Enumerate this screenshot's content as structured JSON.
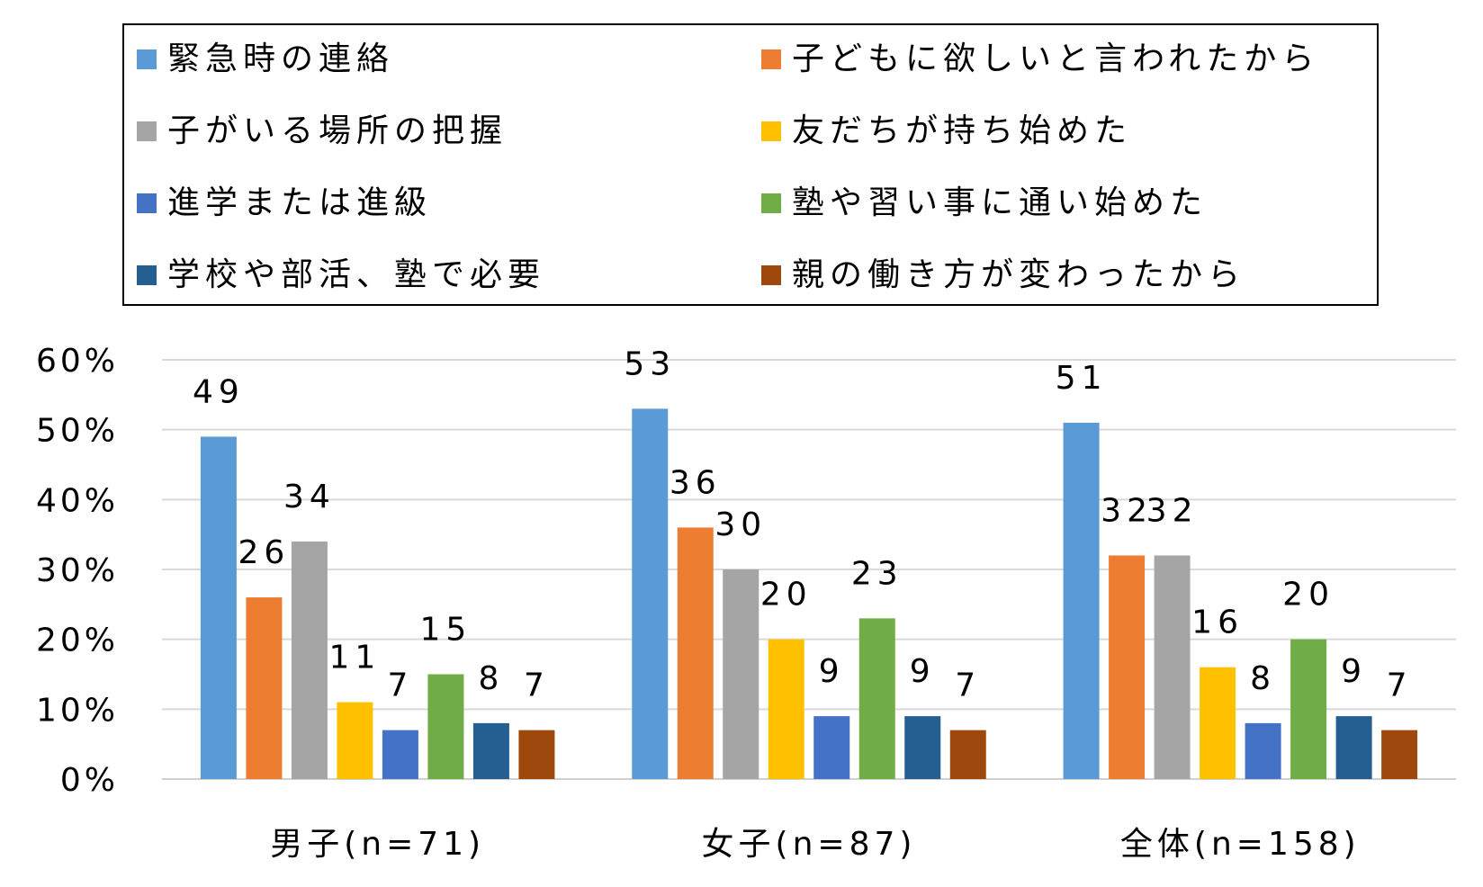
{
  "chart_data": {
    "type": "bar",
    "categories": [
      "男子(n=71)",
      "女子(n=87)",
      "全体(n=158)"
    ],
    "series": [
      {
        "name": "緊急時の連絡",
        "color": "#5B9BD5",
        "values": [
          49,
          53,
          51
        ]
      },
      {
        "name": "子どもに欲しいと言われたから",
        "color": "#ED7D31",
        "values": [
          26,
          36,
          32
        ]
      },
      {
        "name": "子がいる場所の把握",
        "color": "#A5A5A5",
        "values": [
          34,
          30,
          32
        ]
      },
      {
        "name": "友だちが持ち始めた",
        "color": "#FFC000",
        "values": [
          11,
          20,
          16
        ]
      },
      {
        "name": "進学または進級",
        "color": "#4472C4",
        "values": [
          7,
          9,
          8
        ]
      },
      {
        "name": "塾や習い事に通い始めた",
        "color": "#70AD47",
        "values": [
          15,
          23,
          20
        ]
      },
      {
        "name": "学校や部活、塾で必要",
        "color": "#255E91",
        "values": [
          8,
          9,
          9
        ]
      },
      {
        "name": "親の働き方が変わったから",
        "color": "#9E480E",
        "values": [
          7,
          7,
          7
        ]
      }
    ],
    "yticks": [
      "0%",
      "10%",
      "20%",
      "30%",
      "40%",
      "50%",
      "60%"
    ],
    "ylim": [
      0,
      60
    ],
    "grid": true,
    "legend_placement": "top"
  }
}
